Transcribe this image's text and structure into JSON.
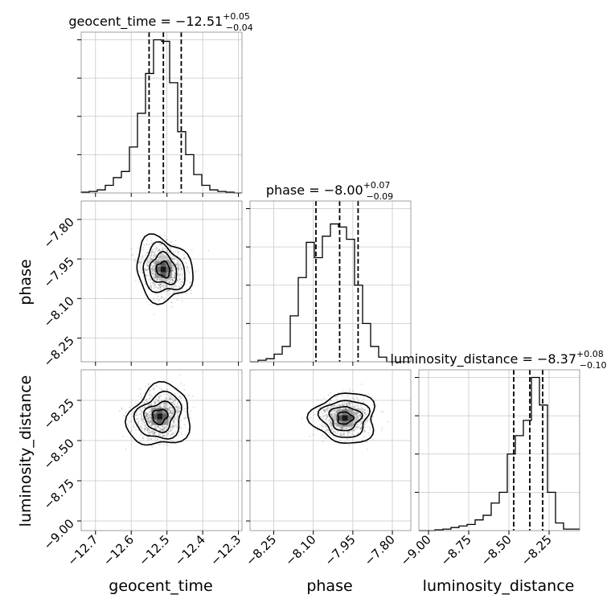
{
  "chart_data": {
    "type": "corner",
    "parameters": [
      "geocent_time",
      "phase",
      "luminosity_distance"
    ],
    "titles": [
      {
        "prefix": "geocent_time = −12.51",
        "plus": "+0.05",
        "minus": "−0.04"
      },
      {
        "prefix": "phase = −8.00",
        "plus": "+0.07",
        "minus": "−0.09"
      },
      {
        "prefix": "luminosity_distance = −8.37",
        "plus": "+0.08",
        "minus": "−0.10"
      }
    ],
    "axes": {
      "geocent_time": {
        "range": [
          -12.74,
          -12.29
        ],
        "ticks": [
          -12.7,
          -12.6,
          -12.5,
          -12.4,
          -12.3
        ],
        "tick_labels": [
          "−12.7",
          "−12.6",
          "−12.5",
          "−12.4",
          "−12.3"
        ]
      },
      "phase": {
        "range": [
          -8.34,
          -7.73
        ],
        "ticks": [
          -8.25,
          -8.1,
          -7.95,
          -7.8
        ],
        "tick_labels": [
          "−8.25",
          "−8.10",
          "−7.95",
          "−7.80"
        ]
      },
      "luminosity_distance": {
        "range": [
          -9.06,
          -8.06
        ],
        "ticks": [
          -9.0,
          -8.75,
          -8.5,
          -8.25
        ],
        "tick_labels": [
          "−9.00",
          "−8.75",
          "−8.50",
          "−8.25"
        ]
      }
    },
    "quantiles": {
      "geocent_time": [
        -12.55,
        -12.51,
        -12.46
      ],
      "phase": [
        -8.09,
        -8.0,
        -7.93
      ],
      "luminosity_distance": [
        -8.47,
        -8.37,
        -8.29
      ]
    },
    "histograms": {
      "geocent_time": {
        "edges": [
          -12.74,
          -12.7175,
          -12.695,
          -12.6725,
          -12.65,
          -12.6275,
          -12.605,
          -12.5825,
          -12.56,
          -12.5375,
          -12.515,
          -12.4925,
          -12.47,
          -12.4475,
          -12.425,
          -12.4025,
          -12.38,
          -12.3575,
          -12.335,
          -12.3125,
          -12.29
        ],
        "counts": [
          0.005,
          0.01,
          0.02,
          0.05,
          0.1,
          0.14,
          0.3,
          0.52,
          0.78,
          1.0,
          0.99,
          0.72,
          0.4,
          0.25,
          0.12,
          0.05,
          0.02,
          0.01,
          0.005,
          0.0
        ]
      },
      "phase": {
        "edges": [
          -8.34,
          -8.3095,
          -8.279,
          -8.2485,
          -8.218,
          -8.1875,
          -8.157,
          -8.1265,
          -8.096,
          -8.0655,
          -8.035,
          -8.0045,
          -7.974,
          -7.9435,
          -7.913,
          -7.8825,
          -7.852,
          -7.8215,
          -7.791,
          -7.7605,
          -7.73
        ],
        "counts": [
          0.0,
          0.01,
          0.02,
          0.05,
          0.1,
          0.3,
          0.55,
          0.78,
          0.68,
          0.82,
          0.9,
          0.88,
          0.8,
          0.5,
          0.25,
          0.1,
          0.03,
          0.0,
          0.0,
          0.0
        ]
      },
      "luminosity_distance": {
        "edges": [
          -9.06,
          -9.01,
          -8.96,
          -8.91,
          -8.86,
          -8.81,
          -8.76,
          -8.71,
          -8.66,
          -8.61,
          -8.56,
          -8.51,
          -8.46,
          -8.41,
          -8.36,
          -8.31,
          -8.26,
          -8.21,
          -8.16,
          -8.11,
          -8.06
        ],
        "counts": [
          0.0,
          0.0,
          0.005,
          0.01,
          0.02,
          0.03,
          0.04,
          0.07,
          0.1,
          0.18,
          0.25,
          0.5,
          0.62,
          0.72,
          1.0,
          0.82,
          0.25,
          0.05,
          0.01,
          0.01
        ]
      }
    },
    "contour_centers": {
      "phase_vs_geocent_time": [
        -12.51,
        -7.99
      ],
      "luminosity_distance_vs_geocent_time": [
        -12.52,
        -8.35
      ],
      "luminosity_distance_vs_phase": [
        -7.98,
        -8.36
      ]
    },
    "grid": true,
    "legend": "none"
  }
}
